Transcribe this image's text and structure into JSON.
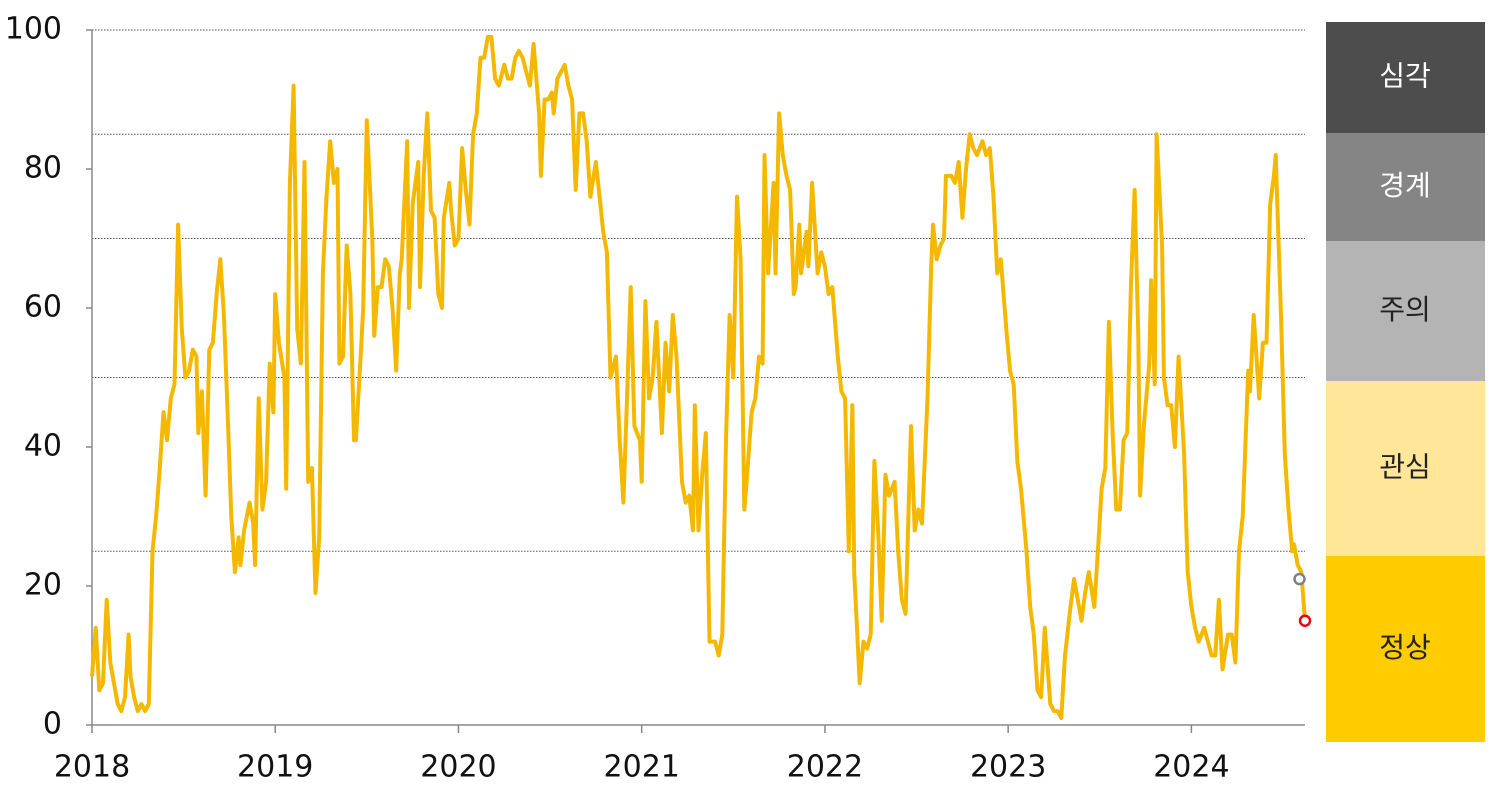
{
  "chart_data": {
    "type": "line",
    "x": [
      2018.0,
      2018.02,
      2018.04,
      2018.06,
      2018.08,
      2018.1,
      2018.12,
      2018.14,
      2018.16,
      2018.18,
      2018.2,
      2018.21,
      2018.23,
      2018.25,
      2018.27,
      2018.29,
      2018.31,
      2018.33,
      2018.35,
      2018.37,
      2018.39,
      2018.41,
      2018.43,
      2018.45,
      2018.47,
      2018.49,
      2018.51,
      2018.53,
      2018.55,
      2018.57,
      2018.58,
      2018.6,
      2018.62,
      2018.64,
      2018.66,
      2018.68,
      2018.7,
      2018.72,
      2018.74,
      2018.76,
      2018.78,
      2018.8,
      2018.81,
      2018.83,
      2018.86,
      2018.88,
      2018.89,
      2018.91,
      2018.93,
      2018.95,
      2018.97,
      2018.99,
      2019.0,
      2019.02,
      2019.05,
      2019.06,
      2019.08,
      2019.1,
      2019.12,
      2019.14,
      2019.16,
      2019.18,
      2019.2,
      2019.22,
      2019.24,
      2019.26,
      2019.28,
      2019.3,
      2019.32,
      2019.34,
      2019.35,
      2019.37,
      2019.39,
      2019.41,
      2019.43,
      2019.44,
      2019.47,
      2019.48,
      2019.5,
      2019.53,
      2019.54,
      2019.56,
      2019.58,
      2019.6,
      2019.62,
      2019.64,
      2019.66,
      2019.68,
      2019.69,
      2019.72,
      2019.73,
      2019.75,
      2019.78,
      2019.79,
      2019.81,
      2019.83,
      2019.85,
      2019.87,
      2019.89,
      2019.91,
      2019.92,
      2019.95,
      2019.96,
      2019.98,
      2020.0,
      2020.02,
      2020.04,
      2020.06,
      2020.08,
      2020.1,
      2020.12,
      2020.14,
      2020.16,
      2020.18,
      2020.2,
      2020.22,
      2020.25,
      2020.27,
      2020.29,
      2020.31,
      2020.33,
      2020.35,
      2020.38,
      2020.39,
      2020.41,
      2020.44,
      2020.45,
      2020.47,
      2020.49,
      2020.51,
      2020.52,
      2020.54,
      2020.56,
      2020.58,
      2020.6,
      2020.62,
      2020.64,
      2020.66,
      2020.68,
      2020.7,
      2020.72,
      2020.75,
      2020.77,
      2020.79,
      2020.81,
      2020.83,
      2020.86,
      2020.88,
      2020.9,
      2020.92,
      2020.94,
      2020.96,
      2020.99,
      2021.0,
      2021.02,
      2021.04,
      2021.06,
      2021.08,
      2021.11,
      2021.13,
      2021.15,
      2021.17,
      2021.19,
      2021.22,
      2021.24,
      2021.26,
      2021.28,
      2021.29,
      2021.31,
      2021.33,
      2021.35,
      2021.37,
      2021.4,
      2021.42,
      2021.44,
      2021.46,
      2021.48,
      2021.5,
      2021.52,
      2021.54,
      2021.56,
      2021.57,
      2021.6,
      2021.62,
      2021.64,
      2021.66,
      2021.67,
      2021.69,
      2021.72,
      2021.73,
      2021.75,
      2021.77,
      2021.79,
      2021.81,
      2021.83,
      2021.84,
      2021.86,
      2021.87,
      2021.9,
      2021.91,
      2021.93,
      2021.96,
      2021.98,
      2022.0,
      2022.02,
      2022.04,
      2022.07,
      2022.09,
      2022.11,
      2022.13,
      2022.15,
      2022.16,
      2022.19,
      2022.21,
      2022.23,
      2022.25,
      2022.27,
      2022.29,
      2022.31,
      2022.33,
      2022.35,
      2022.38,
      2022.4,
      2022.42,
      2022.44,
      2022.47,
      2022.49,
      2022.51,
      2022.53,
      2022.56,
      2022.58,
      2022.59,
      2022.61,
      2022.63,
      2022.65,
      2022.66,
      2022.69,
      2022.71,
      2022.73,
      2022.75,
      2022.77,
      2022.79,
      2022.81,
      2022.83,
      2022.86,
      2022.88,
      2022.9,
      2022.92,
      2022.94,
      2022.96,
      2022.99,
      2023.01,
      2023.03,
      2023.05,
      2023.07,
      2023.1,
      2023.12,
      2023.14,
      2023.16,
      2023.18,
      2023.2,
      2023.23,
      2023.25,
      2023.27,
      2023.29,
      2023.31,
      2023.34,
      2023.36,
      2023.38,
      2023.4,
      2023.42,
      2023.44,
      2023.47,
      2023.49,
      2023.51,
      2023.53,
      2023.55,
      2023.57,
      2023.59,
      2023.61,
      2023.63,
      2023.65,
      2023.67,
      2023.69,
      2023.71,
      2023.72,
      2023.74,
      2023.77,
      2023.78,
      2023.8,
      2023.81,
      2023.84,
      2023.85,
      2023.87,
      2023.89,
      2023.91,
      2023.93,
      2023.96,
      2023.98,
      2024.0,
      2024.02,
      2024.04,
      2024.07,
      2024.09,
      2024.11,
      2024.13,
      2024.15,
      2024.17,
      2024.2,
      2024.22,
      2024.24,
      2024.26,
      2024.28,
      2024.31,
      2024.32,
      2024.34,
      2024.37,
      2024.39,
      2024.41,
      2024.43,
      2024.45,
      2024.46,
      2024.49,
      2024.51,
      2024.53,
      2024.55,
      2024.56,
      2024.58,
      2024.6,
      2024.62
    ],
    "series": [
      {
        "color": "#f5b800",
        "values": [
          7,
          14,
          5,
          6,
          18,
          9,
          6,
          3,
          2,
          4,
          13,
          7,
          4,
          2,
          3,
          2,
          3,
          25,
          30,
          37,
          45,
          41,
          47,
          49,
          72,
          57,
          50,
          51,
          54,
          53,
          42,
          48,
          33,
          54,
          55,
          62,
          67,
          59,
          45,
          30,
          22,
          27,
          23,
          28,
          32,
          29,
          23,
          47,
          31,
          35,
          52,
          45,
          62,
          55,
          50,
          34,
          78,
          92,
          57,
          52,
          81,
          35,
          37,
          19,
          27,
          65,
          76,
          84,
          78,
          80,
          52,
          53,
          69,
          62,
          41,
          41,
          55,
          60,
          87,
          70,
          56,
          63,
          63,
          67,
          66,
          60,
          51,
          65,
          67,
          84,
          60,
          75,
          81,
          63,
          79,
          88,
          74,
          73,
          62,
          60,
          73,
          78,
          74,
          69,
          70,
          83,
          77,
          72,
          85,
          88,
          96,
          96,
          99,
          99,
          93,
          92,
          95,
          93,
          93,
          96,
          97,
          96,
          93,
          92,
          98,
          88,
          79,
          90,
          90,
          91,
          88,
          93,
          94,
          95,
          92,
          90,
          77,
          88,
          88,
          84,
          76,
          81,
          76,
          71,
          68,
          50,
          53,
          41,
          32,
          47,
          63,
          43,
          41,
          35,
          61,
          47,
          50,
          58,
          42,
          55,
          48,
          59,
          53,
          35,
          32,
          33,
          28,
          46,
          28,
          36,
          42,
          12,
          12,
          10,
          13,
          41,
          59,
          50,
          76,
          67,
          31,
          34,
          45,
          47,
          53,
          52,
          82,
          65,
          78,
          65,
          88,
          82,
          79,
          77,
          62,
          63,
          72,
          65,
          71,
          66,
          78,
          65,
          68,
          66,
          62,
          63,
          53,
          48,
          47,
          25,
          46,
          22,
          6,
          12,
          11,
          13,
          38,
          28,
          15,
          36,
          33,
          35,
          25,
          18,
          16,
          43,
          28,
          31,
          29,
          47,
          66,
          72,
          67,
          69,
          70,
          79,
          79,
          78,
          81,
          73,
          80,
          85,
          83,
          82,
          84,
          82,
          83,
          76,
          65,
          67,
          57,
          51,
          49,
          38,
          34,
          25,
          17,
          13,
          5,
          4,
          14,
          3,
          2,
          2,
          1,
          10,
          17,
          21,
          18,
          15,
          19,
          22,
          17,
          25,
          34,
          37,
          58,
          42,
          31,
          31,
          41,
          42,
          63,
          77,
          56,
          33,
          43,
          52,
          64,
          49,
          85,
          69,
          50,
          46,
          46,
          40,
          53,
          39,
          22,
          17,
          14,
          12,
          14,
          12,
          10,
          10,
          18,
          8,
          13,
          13,
          9,
          25,
          30,
          51,
          48,
          59,
          47,
          55,
          55,
          75,
          79,
          82,
          58,
          39,
          31,
          25,
          26,
          23,
          22,
          15
        ]
      }
    ],
    "markers": [
      {
        "x": 2024.59,
        "value": 21,
        "color": "#808080"
      },
      {
        "x": 2024.62,
        "value": 15,
        "color": "#e60012"
      }
    ],
    "xlim": [
      2018,
      2024.62
    ],
    "xticks": [
      2018,
      2019,
      2020,
      2021,
      2022,
      2023,
      2024
    ],
    "ylim": [
      0,
      100
    ],
    "yticks": [
      0,
      20,
      40,
      60,
      80,
      100
    ],
    "thresholds": [
      100,
      85,
      70,
      50,
      25
    ],
    "bands": [
      {
        "name": "심각",
        "color": "#4d4d4d"
      },
      {
        "name": "경계",
        "color": "#858585"
      },
      {
        "name": "주의",
        "color": "#b4b4b4"
      },
      {
        "name": "관심",
        "color": "#ffe699"
      },
      {
        "name": "정상",
        "color": "#ffcc00"
      }
    ]
  }
}
